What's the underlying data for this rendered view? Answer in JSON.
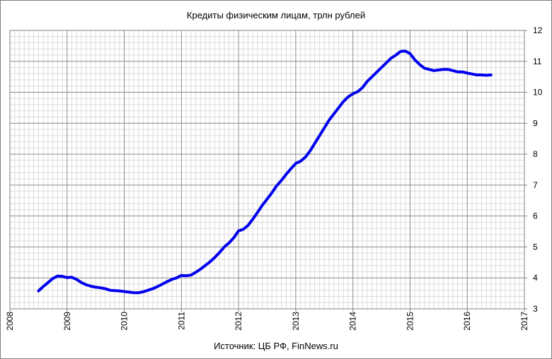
{
  "chart_data": {
    "type": "line",
    "title": "Кредиты физическим лицам, трлн рублей",
    "source": "Источник: ЦБ РФ, FinNews.ru",
    "xlabel": "",
    "ylabel": "",
    "xlim": [
      2008,
      2017
    ],
    "ylim": [
      3,
      12
    ],
    "x_ticks": [
      "2008",
      "2009",
      "2010",
      "2011",
      "2012",
      "2013",
      "2014",
      "2015",
      "2016",
      "2017"
    ],
    "y_ticks": [
      "3",
      "4",
      "5",
      "6",
      "7",
      "8",
      "9",
      "10",
      "11",
      "12"
    ],
    "y_axis_side": "right",
    "grid": true,
    "series": [
      {
        "color": "#0000ee",
        "x": [
          2008.5,
          2008.583,
          2008.667,
          2008.75,
          2008.833,
          2008.917,
          2009.0,
          2009.083,
          2009.167,
          2009.25,
          2009.333,
          2009.417,
          2009.5,
          2009.583,
          2009.667,
          2009.75,
          2009.833,
          2009.917,
          2010.0,
          2010.083,
          2010.167,
          2010.25,
          2010.333,
          2010.417,
          2010.5,
          2010.583,
          2010.667,
          2010.75,
          2010.833,
          2010.917,
          2011.0,
          2011.083,
          2011.167,
          2011.25,
          2011.333,
          2011.417,
          2011.5,
          2011.583,
          2011.667,
          2011.75,
          2011.833,
          2011.917,
          2012.0,
          2012.083,
          2012.167,
          2012.25,
          2012.333,
          2012.417,
          2012.5,
          2012.583,
          2012.667,
          2012.75,
          2012.833,
          2012.917,
          2013.0,
          2013.083,
          2013.167,
          2013.25,
          2013.333,
          2013.417,
          2013.5,
          2013.583,
          2013.667,
          2013.75,
          2013.833,
          2013.917,
          2014.0,
          2014.083,
          2014.167,
          2014.25,
          2014.333,
          2014.417,
          2014.5,
          2014.583,
          2014.667,
          2014.75,
          2014.833,
          2014.917,
          2015.0,
          2015.083,
          2015.167,
          2015.25,
          2015.333,
          2015.417,
          2015.5,
          2015.583,
          2015.667,
          2015.75,
          2015.833,
          2015.917,
          2016.0,
          2016.083,
          2016.167,
          2016.25,
          2016.333,
          2016.417
        ],
        "y": [
          3.58,
          3.72,
          3.85,
          3.98,
          4.06,
          4.05,
          4.01,
          4.02,
          3.95,
          3.85,
          3.78,
          3.73,
          3.7,
          3.68,
          3.65,
          3.6,
          3.59,
          3.58,
          3.56,
          3.54,
          3.52,
          3.52,
          3.55,
          3.6,
          3.65,
          3.72,
          3.8,
          3.88,
          3.95,
          4.0,
          4.08,
          4.07,
          4.09,
          4.18,
          4.28,
          4.4,
          4.52,
          4.66,
          4.82,
          5.0,
          5.13,
          5.3,
          5.52,
          5.57,
          5.7,
          5.9,
          6.12,
          6.35,
          6.55,
          6.75,
          6.98,
          7.15,
          7.35,
          7.53,
          7.7,
          7.77,
          7.9,
          8.1,
          8.35,
          8.6,
          8.85,
          9.1,
          9.3,
          9.5,
          9.7,
          9.85,
          9.95,
          10.02,
          10.15,
          10.35,
          10.5,
          10.65,
          10.8,
          10.95,
          11.1,
          11.2,
          11.32,
          11.33,
          11.25,
          11.05,
          10.9,
          10.78,
          10.74,
          10.7,
          10.72,
          10.74,
          10.74,
          10.7,
          10.66,
          10.66,
          10.62,
          10.59,
          10.56,
          10.56,
          10.55,
          10.56
        ]
      }
    ]
  }
}
